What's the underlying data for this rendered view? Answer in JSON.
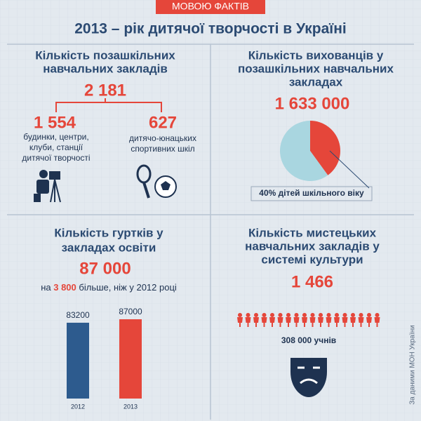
{
  "header": {
    "tag": "МОВОЮ ФАКТІВ",
    "title": "2013 – рік дитячої творчості в Україні"
  },
  "panels": [
    {
      "title_lines": [
        "Кількість позашкільних",
        "навчальних закладів"
      ],
      "total": "2 181",
      "items": [
        {
          "value": "1 554",
          "description_lines": [
            "будинки, центри,",
            "клуби, станції",
            "дитячої творчості"
          ]
        },
        {
          "value": "627",
          "description_lines": [
            "дитячо-юнацьких",
            "спортивних шкіл"
          ]
        }
      ]
    },
    {
      "title_lines": [
        "Кількість вихованців у",
        "позашкільних навчальних",
        "закладах"
      ],
      "total": "1 633 000"
    },
    {
      "title_lines": [
        "Кількість гуртків у",
        "закладах освіти"
      ],
      "total": "87 000",
      "note": {
        "prefix": "на",
        "highlight": "3 800",
        "suffix": "більше, ніж у 2012 році"
      }
    },
    {
      "title_lines": [
        "Кількість мистецьких",
        "навчальних закладів у",
        "системі культури"
      ],
      "total": "1 466",
      "caption": "308 000 учнів"
    }
  ],
  "source": "За даними МОН України",
  "chart_data": [
    {
      "type": "pie",
      "values": [
        40,
        60
      ],
      "colors": [
        "#e5463a",
        "#a9d6e0"
      ],
      "annotation": "40% дітей шкільного віку"
    },
    {
      "type": "bar",
      "categories": [
        "2012",
        "2013"
      ],
      "values": [
        83200,
        87000
      ],
      "colors": [
        "#2d5b8e",
        "#e5463a"
      ]
    }
  ]
}
